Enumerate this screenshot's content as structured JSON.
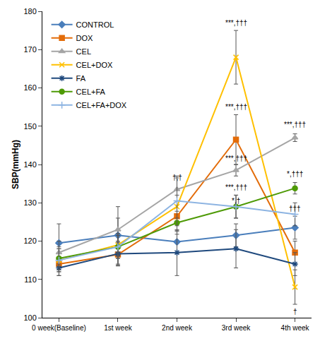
{
  "chart_data": {
    "type": "line",
    "y_label": "SBP(mmHg)",
    "categories": [
      "0 week(Baseline)",
      "1st week",
      "2nd week",
      "3rd week",
      "4th week"
    ],
    "series": [
      {
        "name": "CONTROL",
        "color": "#4a7ebb",
        "marker": "diamond",
        "values": [
          119.5,
          121.5,
          119.8,
          121.5,
          123.5
        ],
        "errors": [
          5,
          7.5,
          3,
          3,
          3
        ]
      },
      {
        "name": "DOX",
        "color": "#e36c09",
        "marker": "square",
        "values": [
          114,
          116.5,
          126.5,
          146.5,
          117
        ],
        "errors": [
          3,
          3,
          4,
          6.5,
          3
        ]
      },
      {
        "name": "CEL",
        "color": "#a5a5a5",
        "marker": "triangle",
        "values": [
          117,
          123,
          133.5,
          138.5,
          147
        ],
        "errors": [
          3,
          3,
          3,
          1.5,
          1
        ]
      },
      {
        "name": "CEL+DOX",
        "color": "#ffc000",
        "marker": "x",
        "values": [
          115,
          119,
          129,
          168,
          108
        ],
        "errors": [
          3,
          3,
          3,
          7,
          4.5
        ]
      },
      {
        "name": "FA",
        "color": "#1f497d",
        "marker": "star",
        "values": [
          113,
          116.7,
          117,
          118,
          114
        ],
        "errors": [
          2,
          3,
          6,
          5,
          3
        ]
      },
      {
        "name": "CEL+FA",
        "color": "#4e9a06",
        "marker": "circle",
        "values": [
          115.5,
          118.5,
          124.8,
          129,
          133.8
        ],
        "errors": [
          3,
          3,
          3,
          3,
          1.5
        ]
      },
      {
        "name": "CEL+FA+DOX",
        "color": "#8db4e2",
        "marker": "plus",
        "values": [
          115,
          118.5,
          130.5,
          129,
          127
        ],
        "errors": [
          3,
          3,
          6.5,
          3,
          3
        ]
      }
    ],
    "annotations": [
      {
        "x": "2nd week",
        "y": 136.5,
        "text": "†,†"
      },
      {
        "x": "3rd week",
        "y": 177,
        "text": "***,†††"
      },
      {
        "x": "3rd week",
        "y": 155,
        "text": "***,†††"
      },
      {
        "x": "3rd week",
        "y": 141.5,
        "text": "***,†††"
      },
      {
        "x": "3rd week",
        "y": 134,
        "text": "***,†††"
      },
      {
        "x": "3rd week",
        "y": 130.5,
        "text": "*,†"
      },
      {
        "x": "4th week",
        "y": 150.5,
        "text": "***,†††"
      },
      {
        "x": "4th week",
        "y": 137.5,
        "text": "*,†††"
      },
      {
        "x": "4th week",
        "y": 128.5,
        "text": "†††"
      },
      {
        "x": "4th week",
        "y": 101.5,
        "text": "†"
      }
    ],
    "ylim": [
      100,
      180
    ],
    "yticks": [
      100,
      110,
      120,
      130,
      140,
      150,
      160,
      170,
      180
    ],
    "grid": false,
    "legend": "top-left"
  }
}
